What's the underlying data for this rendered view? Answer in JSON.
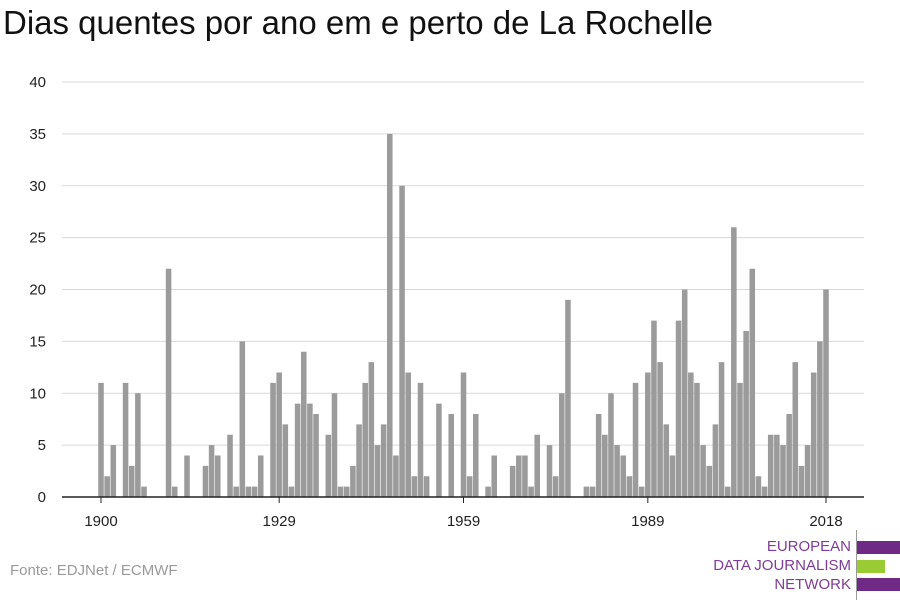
{
  "chart_data": {
    "type": "bar",
    "title": "Dias quentes por ano em e perto de La Rochelle",
    "xlabel": "",
    "ylabel": "",
    "x_tick_labels": [
      "1900",
      "1929",
      "1959",
      "1989",
      "2018"
    ],
    "y_tick_labels": [
      "0",
      "5",
      "10",
      "15",
      "20",
      "25",
      "30",
      "35",
      "40"
    ],
    "ylim": [
      0,
      40
    ],
    "xlim": [
      1900,
      2018
    ],
    "grid": true,
    "bar_color": "#9b9b9b",
    "x": [
      1900,
      1901,
      1902,
      1903,
      1904,
      1905,
      1906,
      1907,
      1908,
      1909,
      1910,
      1911,
      1912,
      1913,
      1914,
      1915,
      1916,
      1917,
      1918,
      1919,
      1920,
      1921,
      1922,
      1923,
      1924,
      1925,
      1926,
      1927,
      1928,
      1929,
      1930,
      1931,
      1932,
      1933,
      1934,
      1935,
      1936,
      1937,
      1938,
      1939,
      1940,
      1941,
      1942,
      1943,
      1944,
      1945,
      1946,
      1947,
      1948,
      1949,
      1950,
      1951,
      1952,
      1953,
      1954,
      1955,
      1956,
      1957,
      1958,
      1959,
      1960,
      1961,
      1962,
      1963,
      1964,
      1965,
      1966,
      1967,
      1968,
      1969,
      1970,
      1971,
      1972,
      1973,
      1974,
      1975,
      1976,
      1977,
      1978,
      1979,
      1980,
      1981,
      1982,
      1983,
      1984,
      1985,
      1986,
      1987,
      1988,
      1989,
      1990,
      1991,
      1992,
      1993,
      1994,
      1995,
      1996,
      1997,
      1998,
      1999,
      2000,
      2001,
      2002,
      2003,
      2004,
      2005,
      2006,
      2007,
      2008,
      2009,
      2010,
      2011,
      2012,
      2013,
      2014,
      2015,
      2016,
      2017,
      2018
    ],
    "values": [
      11,
      2,
      5,
      0,
      11,
      3,
      10,
      1,
      0,
      0,
      0,
      22,
      1,
      0,
      4,
      0,
      0,
      3,
      5,
      4,
      0,
      6,
      1,
      15,
      1,
      1,
      4,
      0,
      11,
      12,
      7,
      1,
      9,
      14,
      9,
      8,
      0,
      6,
      10,
      1,
      1,
      3,
      7,
      11,
      13,
      5,
      7,
      35,
      4,
      30,
      12,
      2,
      11,
      2,
      0,
      9,
      0,
      8,
      0,
      12,
      2,
      8,
      0,
      1,
      4,
      0,
      0,
      3,
      4,
      4,
      1,
      6,
      0,
      5,
      2,
      10,
      19,
      0,
      0,
      1,
      1,
      8,
      6,
      10,
      5,
      4,
      2,
      11,
      1,
      12,
      17,
      13,
      7,
      4,
      17,
      20,
      12,
      11,
      5,
      3,
      7,
      13,
      1,
      26,
      11,
      16,
      22,
      2,
      1,
      6,
      6,
      5,
      8,
      13,
      3,
      5,
      12,
      15,
      20
    ]
  },
  "source": "Fonte: EDJNet / ECMWF",
  "logo": {
    "lines": [
      "EUROPEAN",
      "DATA JOURNALISM",
      "NETWORK"
    ],
    "colors": [
      "#6f2a86",
      "#99cc33",
      "#6f2a86"
    ]
  }
}
